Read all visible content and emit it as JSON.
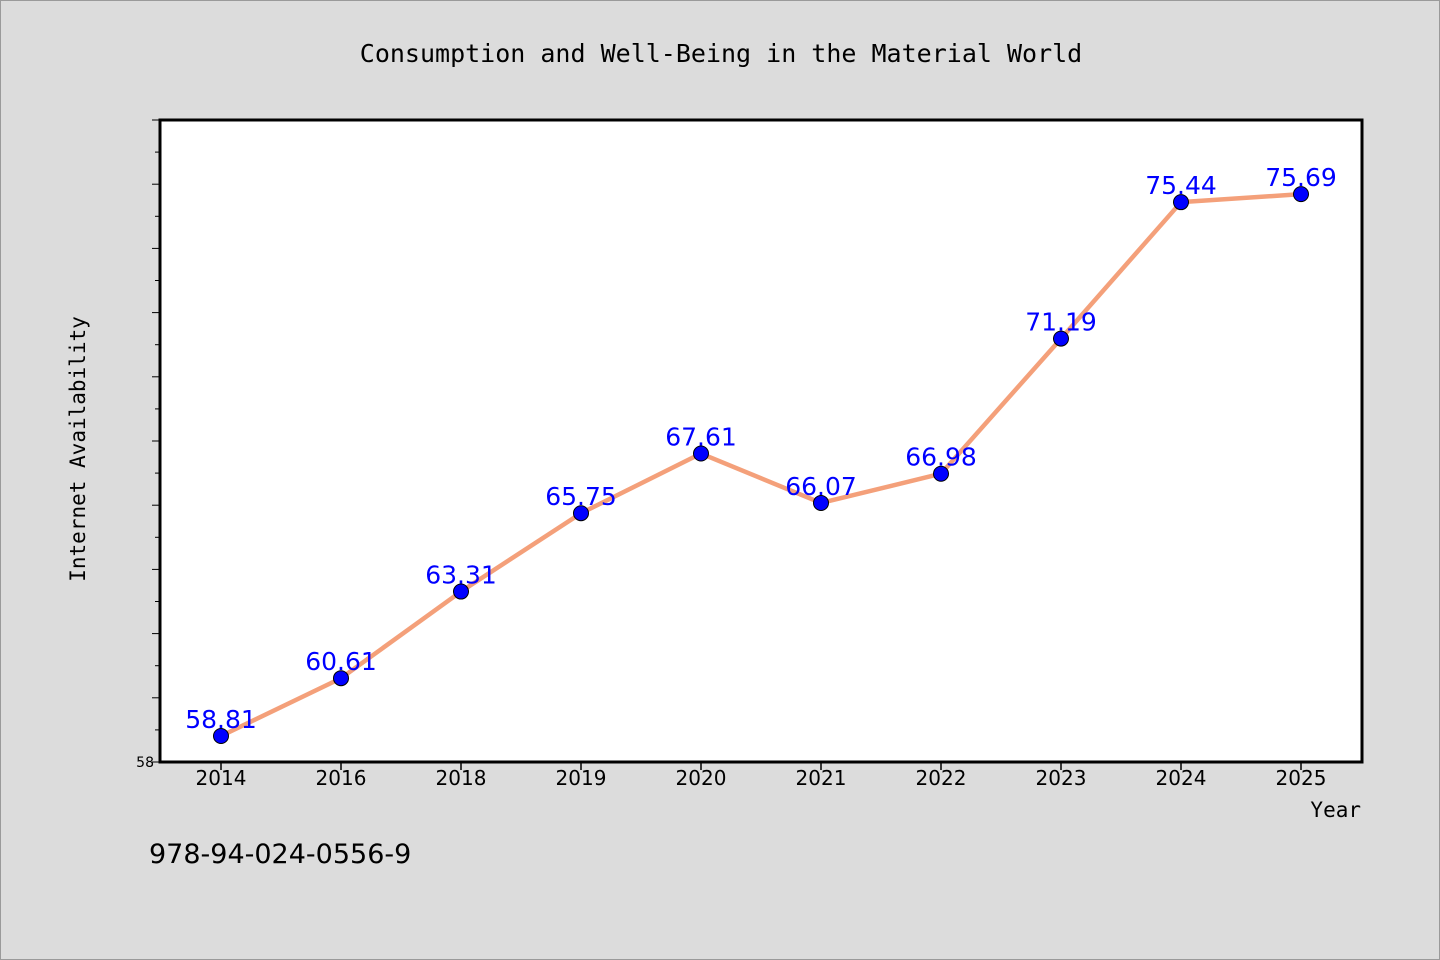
{
  "chart_data": {
    "type": "line",
    "title": "Consumption and Well-Being in the Material World",
    "xlabel": "Year",
    "ylabel": "Internet Availability",
    "categories": [
      "2014",
      "2016",
      "2018",
      "2019",
      "2020",
      "2021",
      "2022",
      "2023",
      "2024",
      "2025"
    ],
    "series": [
      {
        "values": [
          58.81,
          60.61,
          63.31,
          65.75,
          67.61,
          66.07,
          66.98,
          71.19,
          75.44,
          75.69
        ],
        "labels": [
          "58.81",
          "60.61",
          "63.31",
          "65.75",
          "67.61",
          "66.07",
          "66.98",
          "71.19",
          "75.44",
          "75.69"
        ]
      }
    ],
    "ylim": [
      58,
      78
    ],
    "ytick_labels": [
      "58"
    ],
    "grid": false,
    "legend": "none",
    "colors": {
      "line": "#f4a07a",
      "marker": "#0000ff",
      "label": "#0000ff",
      "background": "#dcdcdc",
      "plot_background": "#ffffff"
    }
  },
  "footer": {
    "isbn": "978-94-024-0556-9"
  }
}
